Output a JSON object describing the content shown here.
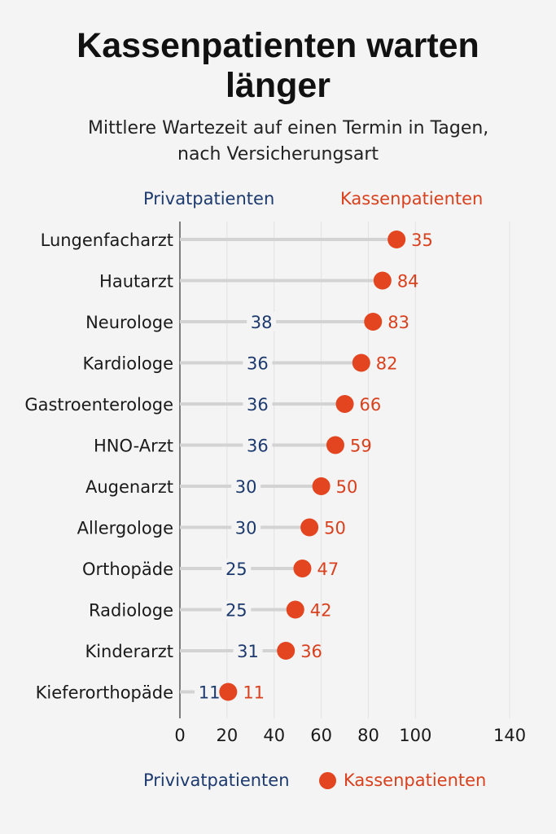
{
  "chart_data": {
    "type": "dot",
    "title_lines": [
      "Kassenpatienten warten",
      "länger"
    ],
    "subtitle_lines": [
      "Mittlere Wartezeit auf einen Termin in Tagen,",
      "nach Versicherungsart"
    ],
    "header": {
      "private": "Privatpatienten",
      "public": "Kassenpatienten"
    },
    "legend": {
      "private": "Privivatpatienten",
      "public": "Kassenpatienten"
    },
    "categories": [
      "Lungenfacharzt",
      "Hautarzt",
      "Neurologe",
      "Kardiologe",
      "Gastroenterologe",
      "HNO-Arzt",
      "Augenarzt",
      "Allergologe",
      "Orthopäde",
      "Radiologe",
      "Kinderarzt",
      "Kieferorthopäde"
    ],
    "series": [
      {
        "name": "Privatpatienten",
        "values": [
          null,
          null,
          38,
          36,
          36,
          36,
          30,
          30,
          25,
          25,
          31,
          11
        ]
      },
      {
        "name": "Kassenpatienten",
        "values": [
          35,
          84,
          83,
          82,
          66,
          59,
          50,
          50,
          47,
          42,
          36,
          11
        ]
      }
    ],
    "dot_positions": [
      92,
      86,
      82,
      77,
      70,
      66,
      60,
      55,
      52,
      49,
      45,
      20.5
    ],
    "x_ticks": [
      0,
      20,
      40,
      60,
      80,
      100,
      140
    ],
    "xlim": [
      0,
      150
    ],
    "colors": {
      "private": "#1d3a6e",
      "public": "#e2451f",
      "public_text": "#d9401d",
      "track": "#d3d3d3"
    }
  }
}
